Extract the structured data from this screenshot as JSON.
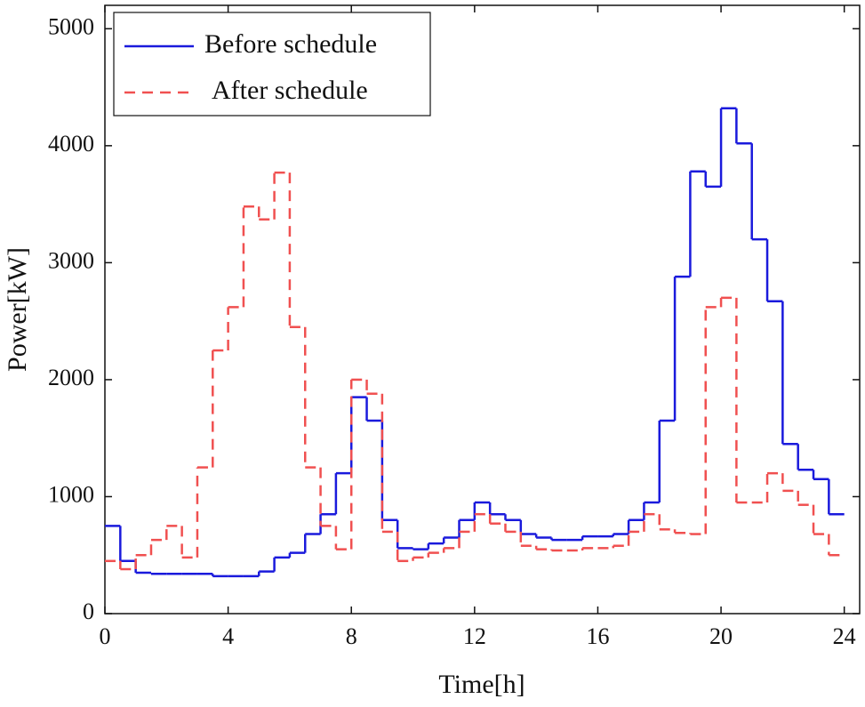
{
  "chart_data": {
    "type": "step",
    "x_label": "Time[h]",
    "y_label": "Power[kW]",
    "x": [
      0,
      0.5,
      1,
      1.5,
      2,
      2.5,
      3,
      3.5,
      4,
      4.5,
      5,
      5.5,
      6,
      6.5,
      7,
      7.5,
      8,
      8.5,
      9,
      9.5,
      10,
      10.5,
      11,
      11.5,
      12,
      12.5,
      13,
      13.5,
      14,
      14.5,
      15,
      15.5,
      16,
      16.5,
      17,
      17.5,
      18,
      18.5,
      19,
      19.5,
      20,
      20.5,
      21,
      21.5,
      22,
      22.5,
      23,
      23.5
    ],
    "series": [
      {
        "name": "Before schedule",
        "color": "#1a1adc",
        "dash": false,
        "values": [
          750,
          450,
          350,
          340,
          340,
          340,
          340,
          320,
          320,
          320,
          360,
          480,
          520,
          680,
          850,
          1200,
          1850,
          1650,
          800,
          560,
          550,
          600,
          650,
          800,
          950,
          850,
          800,
          680,
          650,
          630,
          630,
          660,
          660,
          680,
          800,
          950,
          1650,
          2880,
          3780,
          3650,
          4320,
          4020,
          3200,
          2670,
          1450,
          1230,
          1150,
          850
        ]
      },
      {
        "name": "After schedule",
        "color": "#f05050",
        "dash": true,
        "values": [
          450,
          380,
          500,
          630,
          750,
          480,
          1250,
          2250,
          2620,
          3480,
          3370,
          3770,
          2450,
          1250,
          750,
          550,
          2000,
          1880,
          700,
          450,
          480,
          520,
          560,
          700,
          850,
          770,
          700,
          580,
          550,
          540,
          540,
          560,
          560,
          580,
          700,
          850,
          720,
          690,
          680,
          2620,
          2700,
          950,
          950,
          1200,
          1050,
          930,
          680,
          500
        ]
      }
    ],
    "xlim": [
      0,
      24.5
    ],
    "xticks": [
      0,
      4,
      8,
      12,
      16,
      20,
      24
    ],
    "ylim": [
      0,
      5200
    ],
    "yticks": [
      0,
      1000,
      2000,
      3000,
      4000,
      5000
    ],
    "legend": "upper left"
  }
}
